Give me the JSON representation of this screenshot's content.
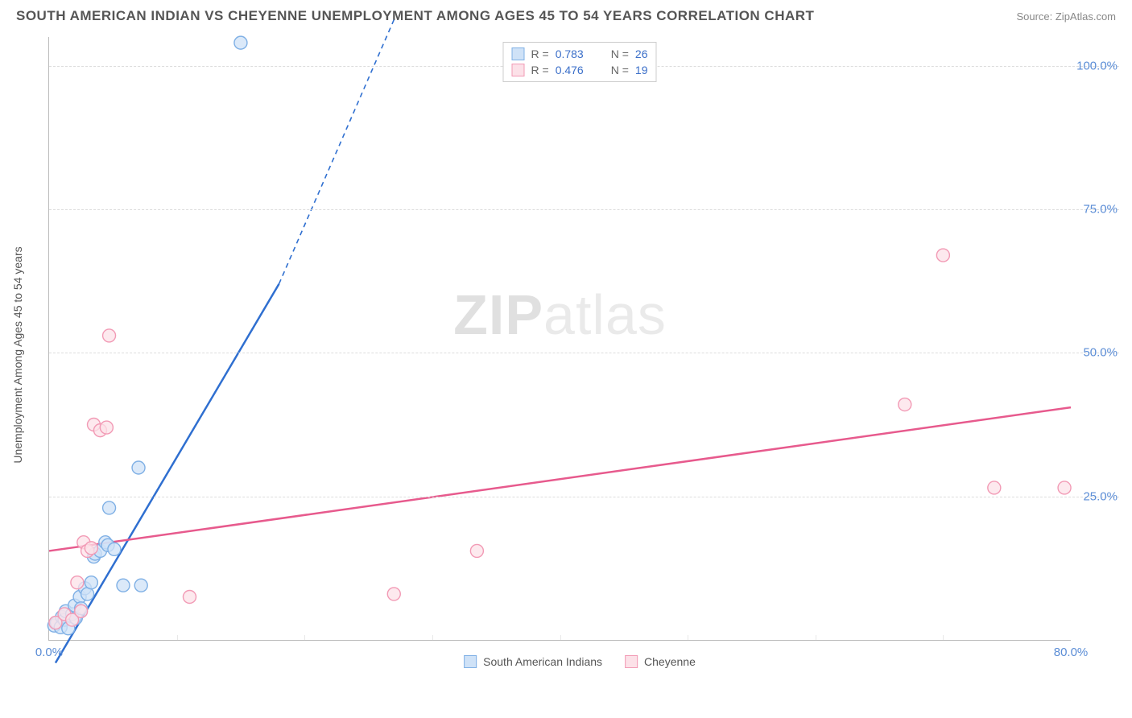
{
  "title": "SOUTH AMERICAN INDIAN VS CHEYENNE UNEMPLOYMENT AMONG AGES 45 TO 54 YEARS CORRELATION CHART",
  "source": "Source: ZipAtlas.com",
  "y_axis_label": "Unemployment Among Ages 45 to 54 years",
  "watermark_bold": "ZIP",
  "watermark_light": "atlas",
  "chart": {
    "type": "scatter",
    "background_color": "#ffffff",
    "grid_color": "#dddddd",
    "axis_color": "#bbbbbb",
    "xlim": [
      0,
      80
    ],
    "ylim": [
      0,
      105
    ],
    "xticks": [
      0.0,
      80.0
    ],
    "xtick_labels": [
      "0.0%",
      "80.0%"
    ],
    "x_minor_ticks": [
      10,
      20,
      30,
      40,
      50,
      60,
      70
    ],
    "yticks": [
      25.0,
      50.0,
      75.0,
      100.0
    ],
    "ytick_labels": [
      "25.0%",
      "50.0%",
      "75.0%",
      "100.0%"
    ],
    "tick_color": "#5b8dd6",
    "tick_fontsize": 15,
    "label_fontsize": 14,
    "title_fontsize": 17,
    "marker_radius": 8,
    "marker_stroke_width": 1.4,
    "series": [
      {
        "name": "South American Indians",
        "fill_color": "#cfe2f7",
        "stroke_color": "#7fb0e5",
        "line_color": "#2f6fd0",
        "R": 0.783,
        "N": 26,
        "points": [
          [
            0.4,
            2.5
          ],
          [
            0.6,
            3.0
          ],
          [
            0.9,
            2.2
          ],
          [
            1.0,
            4.0
          ],
          [
            1.2,
            3.5
          ],
          [
            1.3,
            5.0
          ],
          [
            1.5,
            2.0
          ],
          [
            1.8,
            4.5
          ],
          [
            2.0,
            6.0
          ],
          [
            2.1,
            3.8
          ],
          [
            2.4,
            7.5
          ],
          [
            2.5,
            5.5
          ],
          [
            2.8,
            9.0
          ],
          [
            3.0,
            8.0
          ],
          [
            3.3,
            10.0
          ],
          [
            3.5,
            14.5
          ],
          [
            3.6,
            15.0
          ],
          [
            4.0,
            15.5
          ],
          [
            4.4,
            17.0
          ],
          [
            4.6,
            16.5
          ],
          [
            4.7,
            23.0
          ],
          [
            5.1,
            15.8
          ],
          [
            5.8,
            9.5
          ],
          [
            7.0,
            30.0
          ],
          [
            7.2,
            9.5
          ],
          [
            15.0,
            104.0
          ]
        ],
        "trend": {
          "x1": 0.5,
          "y1": -4,
          "x2_solid": 18,
          "y2_solid": 62,
          "x2_dash": 27,
          "y2_dash": 108
        }
      },
      {
        "name": "Cheyenne",
        "fill_color": "#fce1e8",
        "stroke_color": "#f29ab5",
        "line_color": "#e75a8d",
        "R": 0.476,
        "N": 19,
        "points": [
          [
            0.5,
            3.0
          ],
          [
            1.2,
            4.5
          ],
          [
            1.8,
            3.5
          ],
          [
            2.2,
            10.0
          ],
          [
            2.5,
            5.0
          ],
          [
            2.7,
            17.0
          ],
          [
            3.0,
            15.5
          ],
          [
            3.3,
            16.0
          ],
          [
            3.5,
            37.5
          ],
          [
            4.0,
            36.5
          ],
          [
            4.5,
            37.0
          ],
          [
            4.7,
            53.0
          ],
          [
            11.0,
            7.5
          ],
          [
            27.0,
            8.0
          ],
          [
            33.5,
            15.5
          ],
          [
            67.0,
            41.0
          ],
          [
            70.0,
            67.0
          ],
          [
            74.0,
            26.5
          ],
          [
            79.5,
            26.5
          ]
        ],
        "trend": {
          "x1": 0,
          "y1": 15.5,
          "x2_solid": 80,
          "y2_solid": 40.5
        }
      }
    ]
  },
  "legend_top": {
    "rows": [
      {
        "color_fill": "#cfe2f7",
        "color_stroke": "#7fb0e5",
        "R_label": "R =",
        "R_value": "0.783",
        "N_label": "N =",
        "N_value": "26"
      },
      {
        "color_fill": "#fce1e8",
        "color_stroke": "#f29ab5",
        "R_label": "R =",
        "R_value": "0.476",
        "N_label": "N =",
        "N_value": "19"
      }
    ]
  },
  "legend_bottom": {
    "items": [
      {
        "fill": "#cfe2f7",
        "stroke": "#7fb0e5",
        "label": "South American Indians"
      },
      {
        "fill": "#fce1e8",
        "stroke": "#f29ab5",
        "label": "Cheyenne"
      }
    ]
  }
}
